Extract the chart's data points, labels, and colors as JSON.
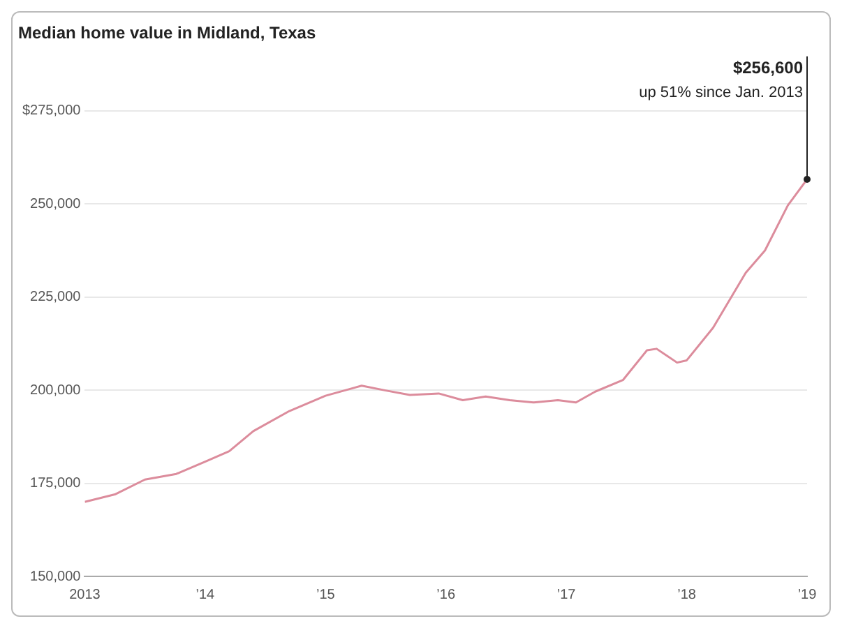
{
  "chart_data": {
    "type": "line",
    "title": "Median home value in Midland, Texas",
    "x": [
      2013.0,
      2013.25,
      2013.5,
      2013.76,
      2014.0,
      2014.2,
      2014.4,
      2014.7,
      2015.0,
      2015.3,
      2015.5,
      2015.7,
      2015.94,
      2016.14,
      2016.33,
      2016.53,
      2016.73,
      2016.93,
      2017.08,
      2017.24,
      2017.47,
      2017.67,
      2017.75,
      2017.92,
      2018.0,
      2018.22,
      2018.49,
      2018.65,
      2018.84,
      2019.0
    ],
    "series": [
      {
        "color": "#dc8c9c",
        "values": [
          170000,
          172000,
          176000,
          177500,
          180800,
          183600,
          189000,
          194400,
          198500,
          201200,
          199900,
          198700,
          199100,
          197300,
          198300,
          197300,
          196700,
          197300,
          196700,
          199600,
          202700,
          210700,
          211100,
          207400,
          208000,
          216800,
          231500,
          237500,
          249600,
          256600
        ]
      }
    ],
    "xlim": [
      2013,
      2019
    ],
    "xticks": [
      {
        "value": 2013,
        "label": "2013"
      },
      {
        "value": 2014,
        "label": "’14"
      },
      {
        "value": 2015,
        "label": "’15"
      },
      {
        "value": 2016,
        "label": "’16"
      },
      {
        "value": 2017,
        "label": "’17"
      },
      {
        "value": 2018,
        "label": "’18"
      },
      {
        "value": 2019,
        "label": "’19"
      }
    ],
    "ylim": [
      150000,
      275000
    ],
    "yticks": [
      {
        "value": 150000,
        "label": "150,000"
      },
      {
        "value": 175000,
        "label": "175,000"
      },
      {
        "value": 200000,
        "label": "200,000"
      },
      {
        "value": 225000,
        "label": "225,000"
      },
      {
        "value": 250000,
        "label": "250,000"
      },
      {
        "value": 275000,
        "label": "$275,000"
      }
    ],
    "grid": "y",
    "legend": false,
    "marker": "none",
    "line_style": "solid",
    "annotations": [
      {
        "text": "$256,600",
        "x": 2019,
        "y": 256600
      },
      "up 51% since Jan. 2013"
    ]
  }
}
